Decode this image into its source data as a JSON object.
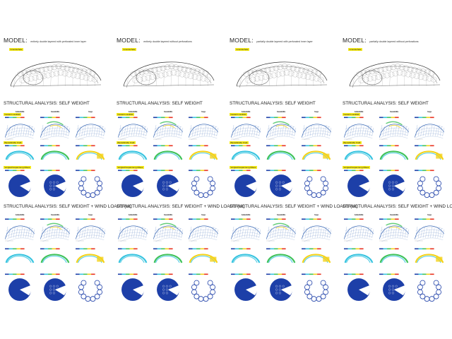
{
  "columns": [
    {
      "model_label": "MODEL:",
      "model_desc": "entirely double layered with perforated inner layer",
      "tag": "Grundschale",
      "sections": [
        {
          "title": "STRUCTURAL ANALYSIS: SELF WEIGHT",
          "headers": [
            "Außenhülle",
            "Innenhülle",
            "Stege"
          ],
          "row_tags": [
            "Gesamt-Lastbild",
            "Bauteilkräfte Kraft",
            "Vergleichsspannung Mises"
          ]
        },
        {
          "title": "STRUCTURAL ANALYSIS: SELF WEIGHT + WIND LOADS (W)",
          "headers": [
            "Außenhülle",
            "Innenhülle",
            "Stege"
          ]
        }
      ]
    },
    {
      "model_label": "MODEL:",
      "model_desc": "entirely double layered without perforations",
      "tag": "Grundschale",
      "sections": [
        {
          "title": "STRUCTURAL ANALYSIS: SELF WEIGHT",
          "headers": [
            "Außenhülle",
            "Innenhülle",
            "Stege"
          ],
          "row_tags": [
            "Gesamt-Lastbild",
            "Bauteilkräfte Kraft",
            "Vergleichsspannung Mises"
          ]
        },
        {
          "title": "STRUCTURAL ANALYSIS: SELF WEIGHT + WIND LOADS (W)",
          "headers": [
            "Außenhülle",
            "Innenhülle",
            "Stege"
          ]
        }
      ]
    },
    {
      "model_label": "MODEL:",
      "model_desc": "partially double layered with perforated inner layer",
      "tag": "Grundschale",
      "sections": [
        {
          "title": "STRUCTURAL ANALYSIS: SELF WEIGHT",
          "headers": [
            "Außenhülle",
            "Innenhülle",
            "Stege"
          ],
          "row_tags": [
            "Gesamt-Lastbild",
            "Bauteilkräfte Kraft",
            "Vergleichsspannung Mises"
          ]
        },
        {
          "title": "STRUCTURAL ANALYSIS: SELF WEIGHT + WIND LOADS (W)",
          "headers": [
            "Außenhülle",
            "Innenhülle",
            "Stege"
          ]
        }
      ]
    },
    {
      "model_label": "MODEL:",
      "model_desc": "partially double layered without perforations",
      "tag": "Grundschale",
      "sections": [
        {
          "title": "STRUCTURAL ANALYSIS: SELF WEIGHT",
          "headers": [
            "Außenhülle",
            "Innenhülle",
            "Stege"
          ],
          "row_tags": [
            "Gesamt-Lastbild",
            "Bauteilkräfte Kraft",
            "Vergleichsspannung Mises"
          ]
        },
        {
          "title": "STRUCTURAL ANALYSIS: SELF WEIGHT + WIND LOADS (W)",
          "headers": [
            "Außenhülle",
            "Innenhülle",
            "Stege"
          ]
        }
      ]
    }
  ],
  "colors": {
    "tag_yellow": "#f5ea1a",
    "mesh_blue": "#2d5fb0",
    "disc_blue": "#1d3fa8",
    "high_red": "#e8311f",
    "mid_yellow": "#f4d21a",
    "mid_green": "#3fc25a",
    "mid_cyan": "#38c4e0"
  }
}
